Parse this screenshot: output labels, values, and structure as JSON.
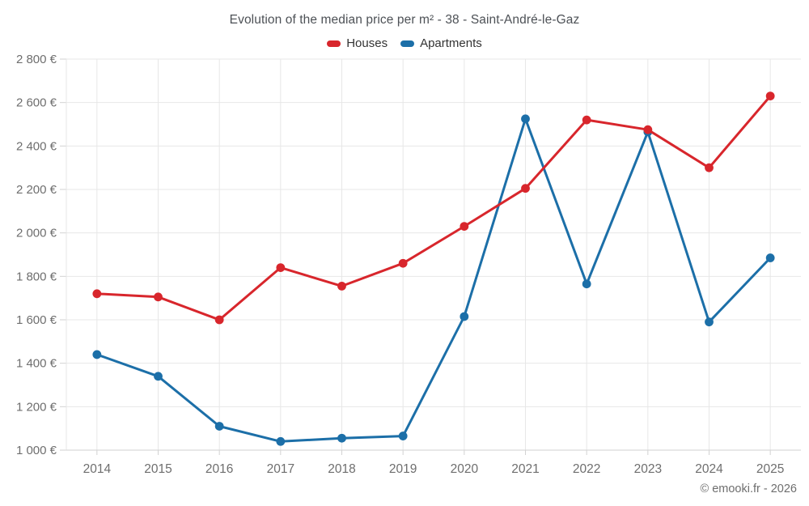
{
  "chart_data": {
    "type": "line",
    "title": "Evolution of the median price per m² - 38 - Saint-André-le-Gaz",
    "categories": [
      "2014",
      "2015",
      "2016",
      "2017",
      "2018",
      "2019",
      "2020",
      "2021",
      "2022",
      "2023",
      "2024",
      "2025"
    ],
    "series": [
      {
        "name": "Houses",
        "color": "#d8262c",
        "values": [
          1720,
          1705,
          1600,
          1840,
          1755,
          1860,
          2030,
          2205,
          2520,
          2475,
          2300,
          2630
        ]
      },
      {
        "name": "Apartments",
        "color": "#1c6fa8",
        "values": [
          1440,
          1340,
          1110,
          1040,
          1055,
          1065,
          1615,
          2525,
          1765,
          2465,
          1590,
          1885
        ]
      }
    ],
    "xlabel": "",
    "ylabel": "",
    "ylim": [
      1000,
      2800
    ],
    "ytick_step": 200,
    "y_tick_labels": [
      "1 000 €",
      "1 200 €",
      "1 400 €",
      "1 600 €",
      "1 800 €",
      "2 000 €",
      "2 200 €",
      "2 400 €",
      "2 600 €",
      "2 800 €"
    ],
    "y_unit": "€",
    "grid": true,
    "legend_position": "top-center",
    "attribution": "© emooki.fr - 2026"
  },
  "colors": {
    "grid_line": "#e7e7e7",
    "axis_line": "#d2d2d2",
    "tick_label": "#6e6e6e",
    "title_text": "#4d5156",
    "legend_text": "#333333",
    "background": "#ffffff"
  }
}
